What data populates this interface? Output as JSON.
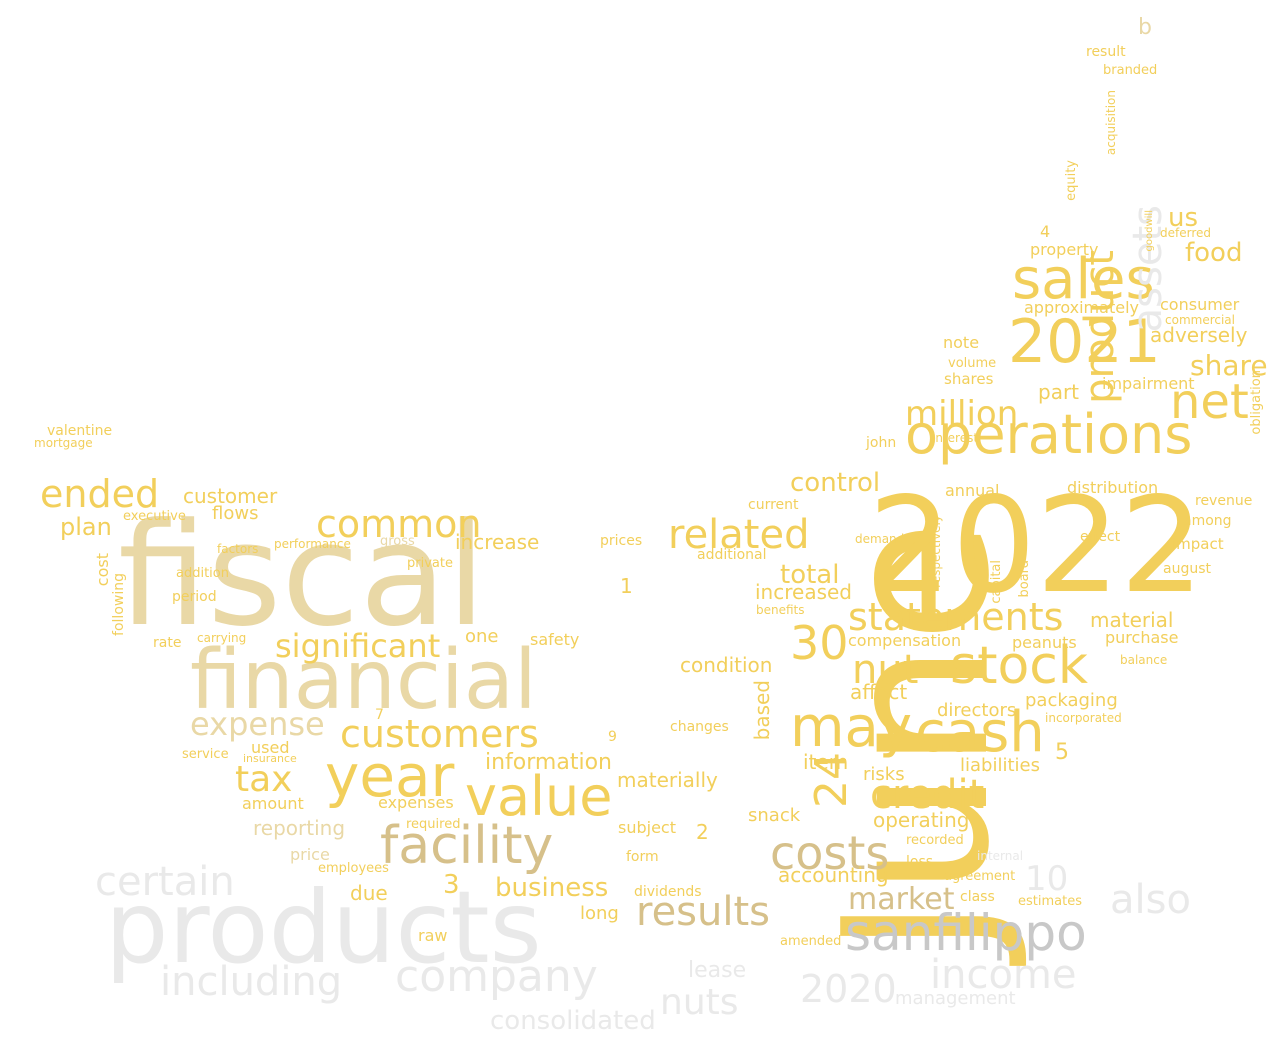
{
  "palette": {
    "gold": "#f2cf5b",
    "lightgold": "#e9d8a6",
    "tan": "#d6c08a",
    "grey": "#c8c8c8",
    "lightgrey": "#e9e9e9",
    "darkgold": "#dcb95a"
  },
  "words": [
    {
      "text": "June",
      "color": "gold",
      "vertical": true
    },
    {
      "text": "fiscal",
      "color": "lightgold"
    },
    {
      "text": "2022",
      "color": "gold"
    },
    {
      "text": "products",
      "color": "lightgrey"
    },
    {
      "text": "financial",
      "color": "lightgold"
    },
    {
      "text": "sales",
      "color": "gold"
    },
    {
      "text": "operations",
      "color": "gold"
    },
    {
      "text": "net",
      "color": "gold"
    },
    {
      "text": "2021",
      "color": "gold"
    },
    {
      "text": "stock",
      "color": "gold"
    },
    {
      "text": "cash",
      "color": "gold"
    },
    {
      "text": "year",
      "color": "gold"
    },
    {
      "text": "value",
      "color": "gold"
    },
    {
      "text": "may",
      "color": "gold"
    },
    {
      "text": "sanfilippo",
      "color": "grey"
    },
    {
      "text": "facility",
      "color": "tan"
    },
    {
      "text": "company",
      "color": "lightgrey"
    },
    {
      "text": "statements",
      "color": "gold"
    },
    {
      "text": "million",
      "color": "gold"
    },
    {
      "text": "ended",
      "color": "gold"
    },
    {
      "text": "customers",
      "color": "gold"
    },
    {
      "text": "related",
      "color": "gold"
    },
    {
      "text": "common",
      "color": "gold"
    },
    {
      "text": "costs",
      "color": "tan"
    },
    {
      "text": "results",
      "color": "tan"
    },
    {
      "text": "income",
      "color": "lightgrey"
    },
    {
      "text": "nut",
      "color": "gold"
    },
    {
      "text": "credit",
      "color": "gold"
    },
    {
      "text": "product",
      "color": "gold",
      "vertical": true
    },
    {
      "text": "assets",
      "color": "lightgrey",
      "vertical": true
    },
    {
      "text": "significant",
      "color": "gold"
    },
    {
      "text": "expense",
      "color": "lightgold"
    },
    {
      "text": "tax",
      "color": "gold"
    },
    {
      "text": "also",
      "color": "lightgrey"
    },
    {
      "text": "including",
      "color": "lightgrey"
    },
    {
      "text": "certain",
      "color": "lightgrey"
    },
    {
      "text": "30",
      "color": "gold"
    },
    {
      "text": "24",
      "color": "gold",
      "vertical": true
    },
    {
      "text": "market",
      "color": "tan"
    },
    {
      "text": "control",
      "color": "gold"
    },
    {
      "text": "share",
      "color": "gold"
    },
    {
      "text": "total",
      "color": "gold"
    },
    {
      "text": "business",
      "color": "gold"
    },
    {
      "text": "2020",
      "color": "lightgrey"
    },
    {
      "text": "nuts",
      "color": "lightgrey"
    },
    {
      "text": "consolidated",
      "color": "lightgrey"
    },
    {
      "text": "management",
      "color": "lightgrey"
    },
    {
      "text": "information",
      "color": "gold"
    },
    {
      "text": "increase",
      "color": "gold"
    },
    {
      "text": "customer",
      "color": "gold"
    },
    {
      "text": "us",
      "color": "gold"
    },
    {
      "text": "food",
      "color": "gold"
    },
    {
      "text": "adversely",
      "color": "gold"
    },
    {
      "text": "materially",
      "color": "gold"
    },
    {
      "text": "item",
      "color": "gold"
    },
    {
      "text": "operating",
      "color": "gold"
    },
    {
      "text": "reporting",
      "color": "lightgold"
    },
    {
      "text": "plan",
      "color": "gold"
    },
    {
      "text": "condition",
      "color": "gold"
    },
    {
      "text": "affect",
      "color": "gold"
    },
    {
      "text": "accounting",
      "color": "gold"
    },
    {
      "text": "lease",
      "color": "lightgrey"
    },
    {
      "text": "due",
      "color": "gold"
    },
    {
      "text": "price",
      "color": "lightgold"
    },
    {
      "text": "part",
      "color": "gold"
    },
    {
      "text": "note",
      "color": "gold"
    },
    {
      "text": "impairment",
      "color": "gold"
    },
    {
      "text": "distribution",
      "color": "gold"
    },
    {
      "text": "material",
      "color": "gold"
    },
    {
      "text": "packaging",
      "color": "gold"
    },
    {
      "text": "purchase",
      "color": "gold"
    },
    {
      "text": "peanuts",
      "color": "gold"
    },
    {
      "text": "liabilities",
      "color": "gold"
    },
    {
      "text": "directors",
      "color": "gold"
    },
    {
      "text": "risks",
      "color": "gold"
    },
    {
      "text": "compensation",
      "color": "gold"
    },
    {
      "text": "increased",
      "color": "gold"
    },
    {
      "text": "based",
      "color": "gold",
      "vertical": true
    },
    {
      "text": "snack",
      "color": "gold"
    },
    {
      "text": "annual",
      "color": "gold"
    },
    {
      "text": "john",
      "color": "gold"
    },
    {
      "text": "interest",
      "color": "gold"
    },
    {
      "text": "volume",
      "color": "gold"
    },
    {
      "text": "shares",
      "color": "gold"
    },
    {
      "text": "property",
      "color": "gold"
    },
    {
      "text": "consumer",
      "color": "gold"
    },
    {
      "text": "commercial",
      "color": "gold"
    },
    {
      "text": "approximately",
      "color": "gold"
    },
    {
      "text": "result",
      "color": "gold"
    },
    {
      "text": "branded",
      "color": "gold"
    },
    {
      "text": "acquisition",
      "color": "gold",
      "vertical": true
    },
    {
      "text": "equity",
      "color": "gold",
      "vertical": true
    },
    {
      "text": "valentine",
      "color": "gold"
    },
    {
      "text": "mortgage",
      "color": "gold"
    },
    {
      "text": "flows",
      "color": "gold"
    },
    {
      "text": "executive",
      "color": "gold"
    },
    {
      "text": "following",
      "color": "gold",
      "vertical": true
    },
    {
      "text": "cost",
      "color": "gold",
      "vertical": true
    },
    {
      "text": "rate",
      "color": "gold"
    },
    {
      "text": "period",
      "color": "gold"
    },
    {
      "text": "addition",
      "color": "gold"
    },
    {
      "text": "carrying",
      "color": "gold"
    },
    {
      "text": "factors",
      "color": "gold"
    },
    {
      "text": "performance",
      "color": "gold"
    },
    {
      "text": "private",
      "color": "gold"
    },
    {
      "text": "raw",
      "color": "gold"
    },
    {
      "text": "one",
      "color": "gold"
    },
    {
      "text": "safety",
      "color": "gold"
    },
    {
      "text": "prices",
      "color": "gold"
    },
    {
      "text": "long",
      "color": "gold"
    },
    {
      "text": "dividends",
      "color": "gold"
    },
    {
      "text": "form",
      "color": "gold"
    },
    {
      "text": "subject",
      "color": "gold"
    },
    {
      "text": "changes",
      "color": "gold"
    },
    {
      "text": "expenses",
      "color": "gold"
    },
    {
      "text": "required",
      "color": "gold"
    },
    {
      "text": "amount",
      "color": "gold"
    },
    {
      "text": "used",
      "color": "gold"
    },
    {
      "text": "insurance",
      "color": "gold"
    },
    {
      "text": "service",
      "color": "gold"
    },
    {
      "text": "employees",
      "color": "gold"
    },
    {
      "text": "gross",
      "color": "lightgold"
    },
    {
      "text": "current",
      "color": "gold"
    },
    {
      "text": "additional",
      "color": "gold"
    },
    {
      "text": "benefits",
      "color": "gold"
    },
    {
      "text": "demand",
      "color": "gold"
    },
    {
      "text": "effect",
      "color": "gold"
    },
    {
      "text": "impact",
      "color": "gold"
    },
    {
      "text": "august",
      "color": "gold"
    },
    {
      "text": "among",
      "color": "gold"
    },
    {
      "text": "revenue",
      "color": "gold"
    },
    {
      "text": "incorporated",
      "color": "gold"
    },
    {
      "text": "balance",
      "color": "gold"
    },
    {
      "text": "agreement",
      "color": "gold"
    },
    {
      "text": "class",
      "color": "gold"
    },
    {
      "text": "estimates",
      "color": "gold"
    },
    {
      "text": "amended",
      "color": "gold"
    },
    {
      "text": "recorded",
      "color": "gold"
    },
    {
      "text": "loss",
      "color": "gold"
    },
    {
      "text": "internal",
      "color": "lightgrey"
    },
    {
      "text": "obligation",
      "color": "gold",
      "vertical": true
    },
    {
      "text": "deferred",
      "color": "gold"
    },
    {
      "text": "goodwill",
      "color": "gold",
      "vertical": true
    },
    {
      "text": "capital",
      "color": "gold",
      "vertical": true
    },
    {
      "text": "board",
      "color": "gold",
      "vertical": true
    },
    {
      "text": "respectively",
      "color": "gold",
      "vertical": true
    },
    {
      "text": "10",
      "color": "lightgrey"
    },
    {
      "text": "3",
      "color": "gold"
    },
    {
      "text": "5",
      "color": "gold"
    },
    {
      "text": "1",
      "color": "gold"
    },
    {
      "text": "2",
      "color": "gold"
    },
    {
      "text": "4",
      "color": "gold"
    },
    {
      "text": "7",
      "color": "gold"
    },
    {
      "text": "9",
      "color": "gold"
    },
    {
      "text": "b",
      "color": "lightgold"
    }
  ]
}
